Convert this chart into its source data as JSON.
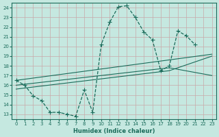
{
  "xlabel": "Humidex (Indice chaleur)",
  "bg_color": "#c5e8e0",
  "line_color": "#1a6b5a",
  "grid_color": "#b8d8d0",
  "xlim": [
    -0.5,
    23.5
  ],
  "ylim": [
    12.5,
    24.5
  ],
  "xticks": [
    0,
    1,
    2,
    3,
    4,
    5,
    6,
    7,
    8,
    9,
    10,
    11,
    12,
    13,
    14,
    15,
    16,
    17,
    18,
    19,
    20,
    21,
    22,
    23
  ],
  "yticks": [
    13,
    14,
    15,
    16,
    17,
    18,
    19,
    20,
    21,
    22,
    23,
    24
  ],
  "figsize": [
    3.2,
    2.0
  ],
  "dpi": 100,
  "curve_x": [
    0,
    1,
    2,
    3,
    4,
    5,
    6,
    7,
    8,
    9,
    10,
    11,
    12,
    13,
    14,
    15,
    16,
    17,
    18,
    19,
    20,
    21,
    22,
    23
  ],
  "curve_y": [
    16.5,
    16.0,
    14.9,
    14.4,
    13.2,
    13.2,
    13.0,
    12.8,
    15.5,
    13.2,
    20.2,
    22.5,
    24.1,
    24.2,
    23.0,
    21.5,
    20.7,
    17.5,
    18.0,
    21.6,
    21.1,
    20.2,
    null,
    null
  ],
  "line1_x": [
    0,
    23
  ],
  "line1_y": [
    16.5,
    19.2
  ],
  "line2_x": [
    0,
    18,
    23
  ],
  "line2_y": [
    16.0,
    17.8,
    17.0
  ],
  "line3_x": [
    0,
    18,
    23
  ],
  "line3_y": [
    15.6,
    17.5,
    19.0
  ]
}
